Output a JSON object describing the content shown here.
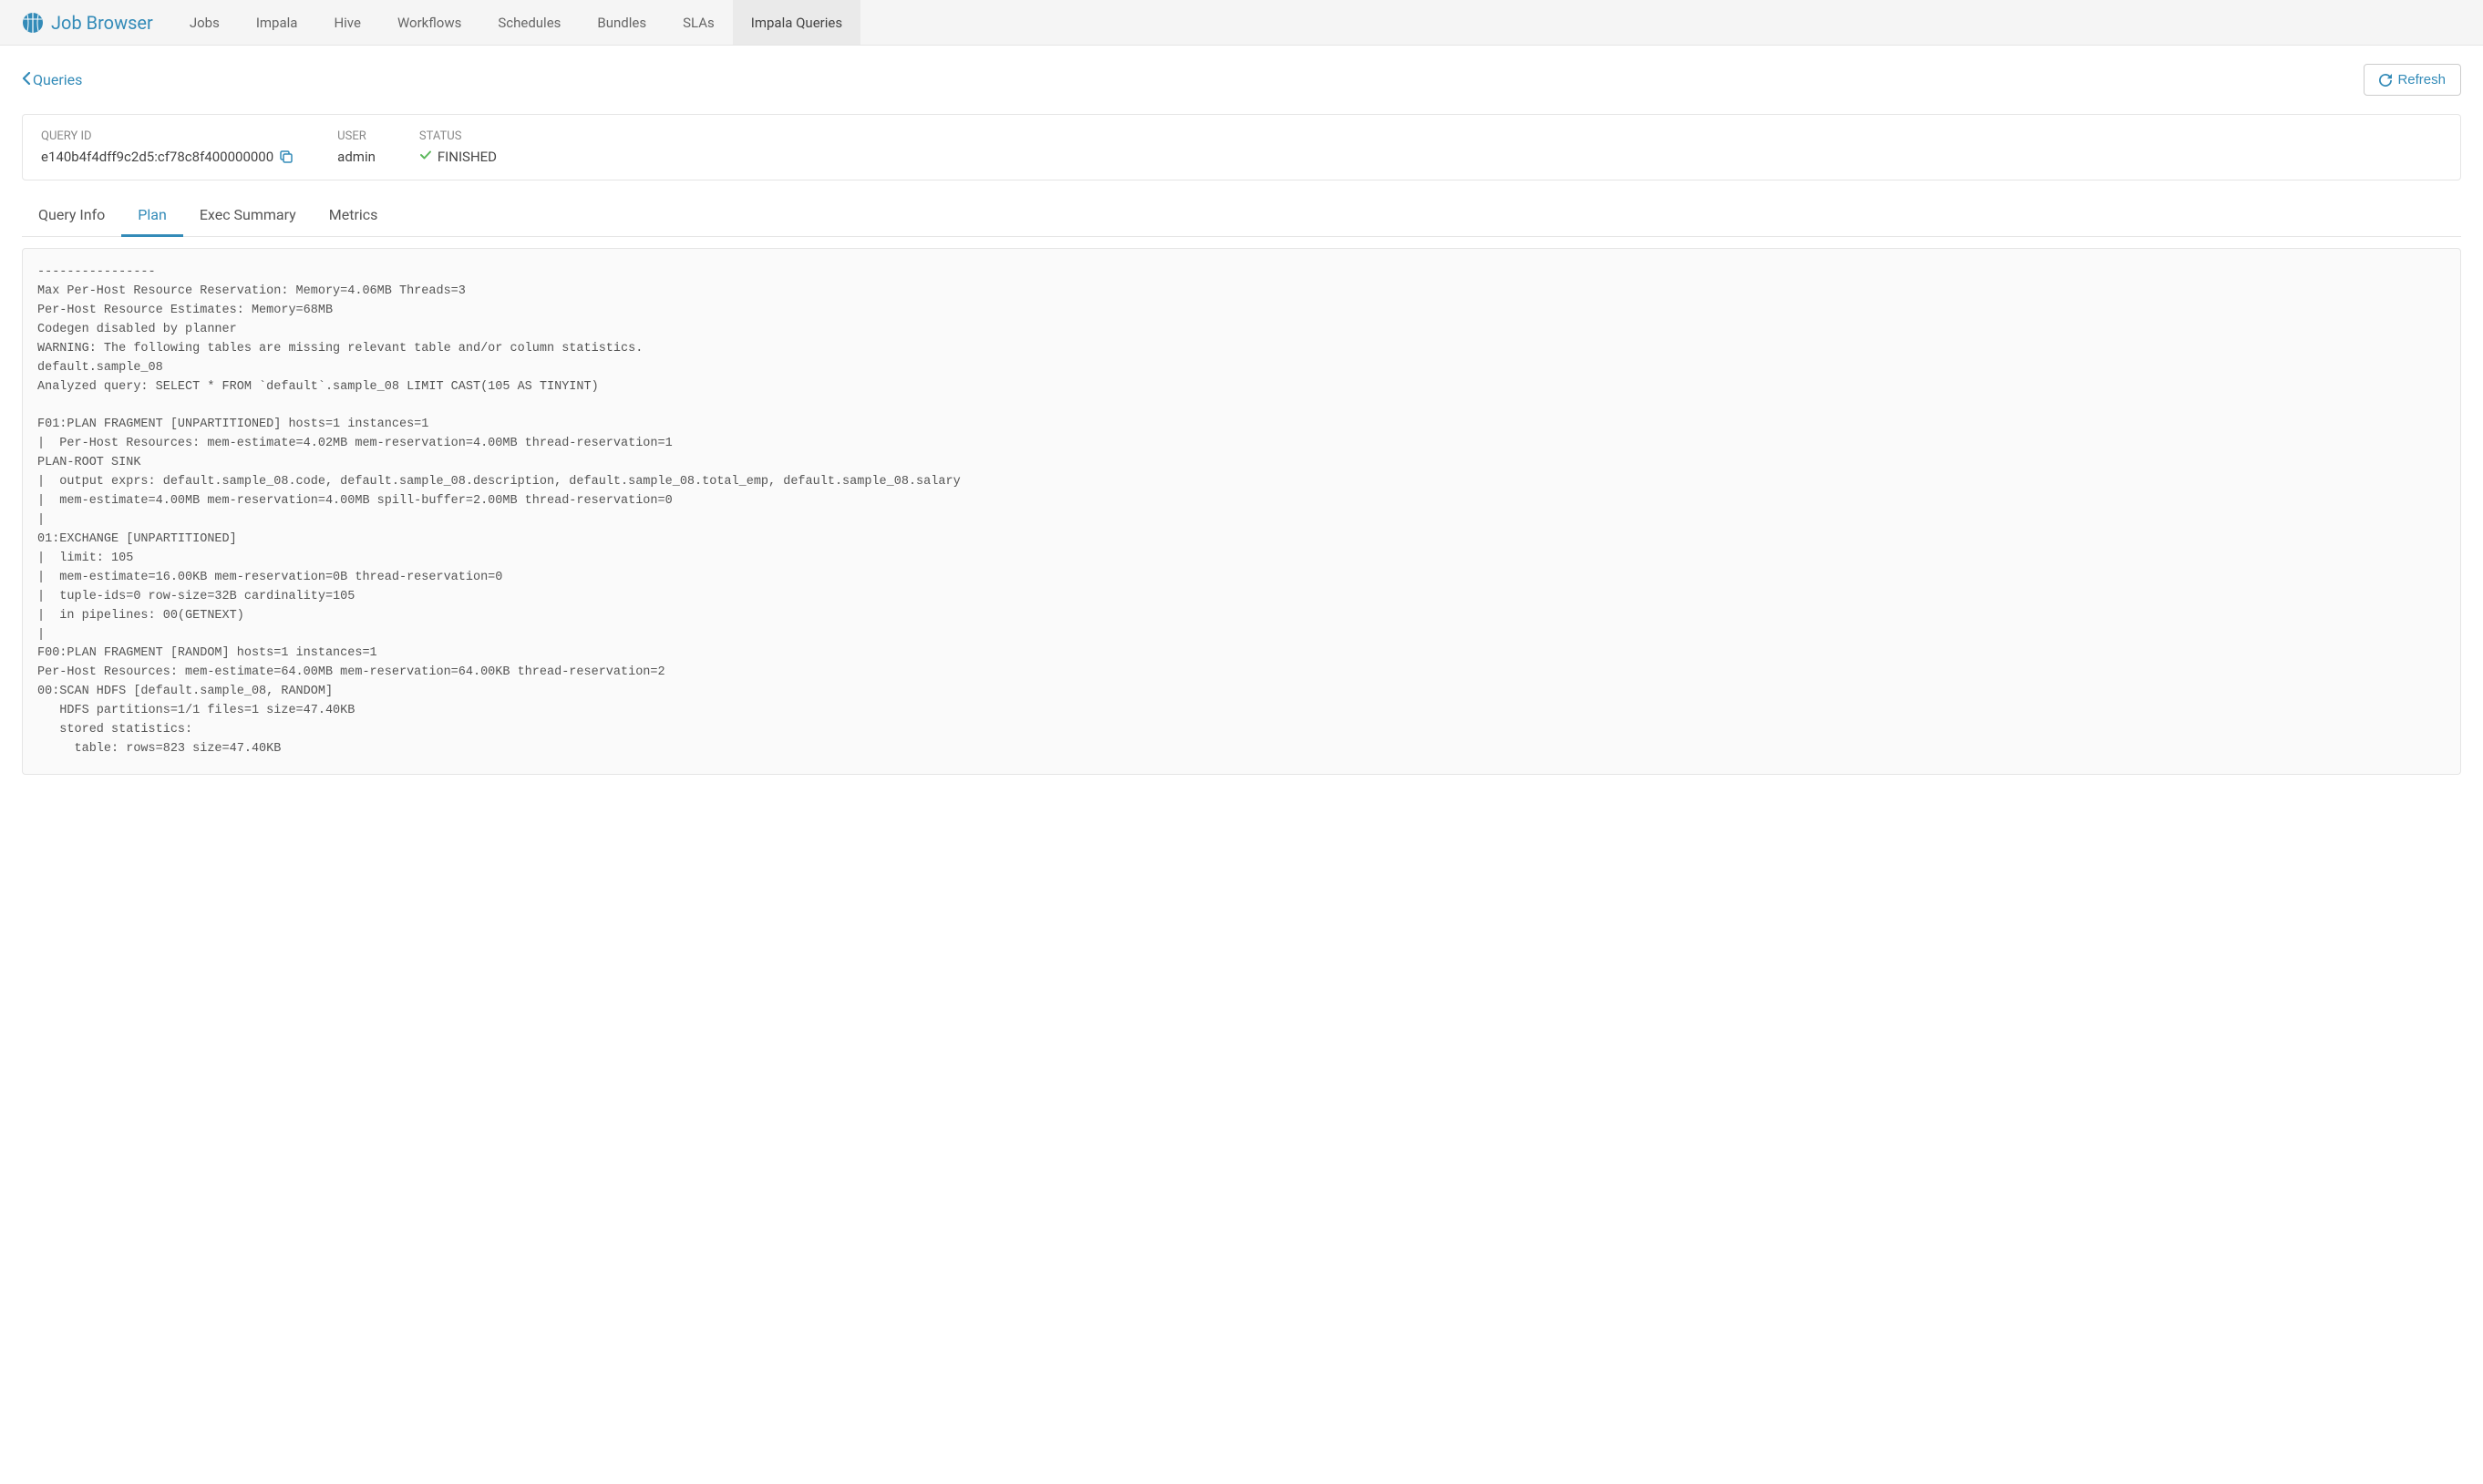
{
  "app_title": "Job Browser",
  "nav_tabs": [
    {
      "label": "Jobs",
      "active": false
    },
    {
      "label": "Impala",
      "active": false
    },
    {
      "label": "Hive",
      "active": false
    },
    {
      "label": "Workflows",
      "active": false
    },
    {
      "label": "Schedules",
      "active": false
    },
    {
      "label": "Bundles",
      "active": false
    },
    {
      "label": "SLAs",
      "active": false
    },
    {
      "label": "Impala Queries",
      "active": true
    }
  ],
  "back_link_label": "Queries",
  "refresh_label": "Refresh",
  "info": {
    "query_id_label": "QUERY ID",
    "query_id_value": "e140b4f4dff9c2d5:cf78c8f400000000",
    "user_label": "USER",
    "user_value": "admin",
    "status_label": "STATUS",
    "status_value": "FINISHED"
  },
  "sub_tabs": [
    {
      "label": "Query Info",
      "active": false
    },
    {
      "label": "Plan",
      "active": true
    },
    {
      "label": "Exec Summary",
      "active": false
    },
    {
      "label": "Metrics",
      "active": false
    }
  ],
  "plan_text": "----------------\nMax Per-Host Resource Reservation: Memory=4.06MB Threads=3\nPer-Host Resource Estimates: Memory=68MB\nCodegen disabled by planner\nWARNING: The following tables are missing relevant table and/or column statistics.\ndefault.sample_08\nAnalyzed query: SELECT * FROM `default`.sample_08 LIMIT CAST(105 AS TINYINT)\n\nF01:PLAN FRAGMENT [UNPARTITIONED] hosts=1 instances=1\n|  Per-Host Resources: mem-estimate=4.02MB mem-reservation=4.00MB thread-reservation=1\nPLAN-ROOT SINK\n|  output exprs: default.sample_08.code, default.sample_08.description, default.sample_08.total_emp, default.sample_08.salary\n|  mem-estimate=4.00MB mem-reservation=4.00MB spill-buffer=2.00MB thread-reservation=0\n|\n01:EXCHANGE [UNPARTITIONED]\n|  limit: 105\n|  mem-estimate=16.00KB mem-reservation=0B thread-reservation=0\n|  tuple-ids=0 row-size=32B cardinality=105\n|  in pipelines: 00(GETNEXT)\n|\nF00:PLAN FRAGMENT [RANDOM] hosts=1 instances=1\nPer-Host Resources: mem-estimate=64.00MB mem-reservation=64.00KB thread-reservation=2\n00:SCAN HDFS [default.sample_08, RANDOM]\n   HDFS partitions=1/1 files=1 size=47.40KB\n   stored statistics:\n     table: rows=823 size=47.40KB",
  "colors": {
    "accent": "#338bb8",
    "success": "#5cb85c",
    "text_muted": "#888",
    "text_body": "#555",
    "border": "#e5e5e5",
    "nav_bg": "#f5f5f5",
    "nav_active_bg": "#eaeaea",
    "code_bg": "#fafafa"
  }
}
